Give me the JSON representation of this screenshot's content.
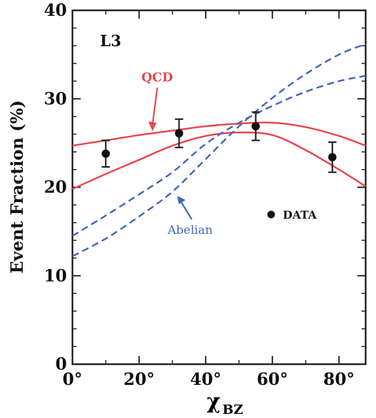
{
  "chart_data": {
    "type": "line",
    "experiment_label": "L3",
    "xlabel": "χ",
    "xlabel_subscript": "BZ",
    "ylabel": "Event Fraction (%)",
    "xlim": [
      0,
      88
    ],
    "ylim": [
      0,
      40
    ],
    "x_ticks": [
      0,
      20,
      40,
      60,
      80
    ],
    "x_tick_labels": [
      "0°",
      "20°",
      "40°",
      "60°",
      "80°"
    ],
    "y_ticks": [
      0,
      10,
      20,
      30,
      40
    ],
    "y_tick_labels": [
      "0",
      "10",
      "20",
      "30",
      "40"
    ],
    "grid": false,
    "series": [
      {
        "name": "QCD",
        "style": "solid",
        "color": "#e8474b",
        "bands": [
          {
            "x": [
              0,
              10,
              20,
              30,
              40,
              50,
              60,
              70,
              80,
              88
            ],
            "y": [
              24.7,
              25.3,
              25.9,
              26.4,
              26.9,
              27.2,
              27.3,
              26.8,
              25.8,
              24.7
            ]
          },
          {
            "x": [
              0,
              10,
              20,
              30,
              40,
              50,
              60,
              70,
              80,
              88
            ],
            "y": [
              19.8,
              21.5,
              23.1,
              24.7,
              25.8,
              26.2,
              25.9,
              24.2,
              22.0,
              20.1
            ]
          }
        ]
      },
      {
        "name": "Abelian",
        "style": "dashed",
        "color": "#4466bb",
        "bands": [
          {
            "x": [
              0,
              10,
              20,
              30,
              40,
              50,
              60,
              70,
              80,
              88
            ],
            "y": [
              14.5,
              16.8,
              19.2,
              21.7,
              24.9,
              27.3,
              29.2,
              30.8,
              32.0,
              32.6
            ]
          },
          {
            "x": [
              0,
              10,
              20,
              30,
              40,
              50,
              60,
              70,
              80,
              88
            ],
            "y": [
              12.2,
              14.2,
              16.7,
              19.5,
              23.2,
              26.9,
              30.1,
              32.8,
              35.0,
              36.2
            ]
          }
        ]
      }
    ],
    "data_points": {
      "name": "DATA",
      "x": [
        10,
        32,
        55,
        78
      ],
      "y": [
        23.8,
        26.1,
        26.9,
        23.4
      ],
      "yerr": [
        1.5,
        1.6,
        1.6,
        1.7
      ]
    },
    "annotations": [
      {
        "text": "QCD",
        "target_series": "QCD"
      },
      {
        "text": "Abelian",
        "target_series": "Abelian"
      }
    ],
    "legend": {
      "placement": "right-middle",
      "entries": [
        "DATA"
      ]
    }
  }
}
